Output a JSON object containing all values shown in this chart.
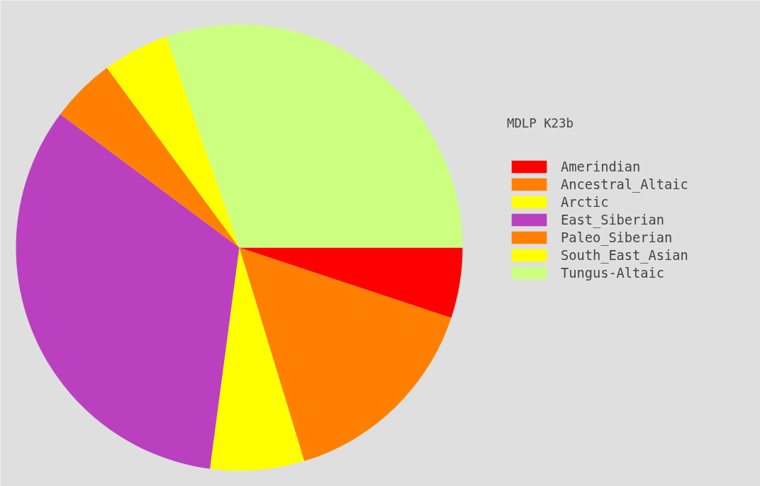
{
  "chart_data": {
    "type": "pie",
    "legend_title": "MDLP K23b",
    "categories": [
      "Amerindian",
      "Ancestral_Altaic",
      "Arctic",
      "East_Siberian",
      "Paleo_Siberian",
      "South_East_Asian",
      "Tungus-Altaic"
    ],
    "values": [
      5.1,
      15.2,
      6.8,
      33.1,
      4.7,
      4.8,
      30.3
    ],
    "colors": [
      "#ff0000",
      "#ff8000",
      "#ffff00",
      "#bb40bf",
      "#ff8000",
      "#ffff00",
      "#ccff80"
    ],
    "legend": "right"
  }
}
